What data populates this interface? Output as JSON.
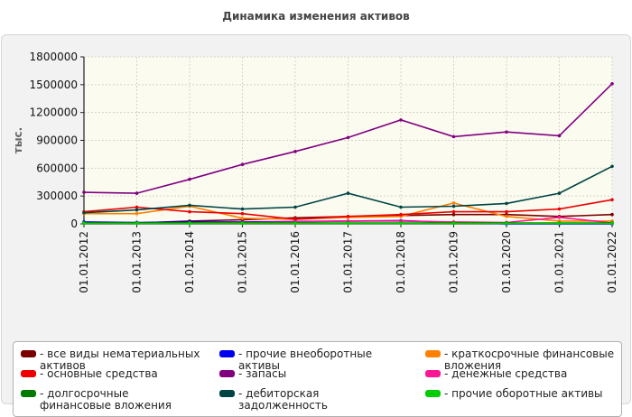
{
  "chart_data": {
    "type": "line",
    "title": "Динамика изменения активов",
    "ylabel": "тыс.",
    "xlabel": "",
    "ylim": [
      0,
      1800000
    ],
    "yticks": [
      0,
      300000,
      600000,
      900000,
      1200000,
      1500000,
      1800000
    ],
    "ytick_labels": [
      "0",
      "300000",
      "600000",
      "900000",
      "1200000",
      "1500000",
      "1800000"
    ],
    "categories": [
      "01.01.2012",
      "01.01.2013",
      "01.01.2014",
      "01.01.2015",
      "01.01.2016",
      "01.01.2017",
      "01.01.2018",
      "01.01.2019",
      "01.01.2020",
      "01.01.2021",
      "01.01.2022"
    ],
    "grid": true,
    "legend_position": "bottom",
    "series": [
      {
        "name": "все виды нематериальных активов",
        "color": "#7a0000",
        "values": [
          5000,
          10000,
          30000,
          45000,
          65000,
          80000,
          90000,
          100000,
          100000,
          80000,
          100000
        ]
      },
      {
        "name": "прочие внеоборотные активы",
        "color": "#0000ee",
        "values": [
          20000,
          15000,
          20000,
          20000,
          25000,
          30000,
          35000,
          15000,
          0,
          0,
          0
        ]
      },
      {
        "name": "краткосрочные финансовые вложения",
        "color": "#ff8000",
        "values": [
          110000,
          110000,
          190000,
          60000,
          50000,
          70000,
          80000,
          225000,
          80000,
          30000,
          30000
        ]
      },
      {
        "name": "основные средства",
        "color": "#ee0000",
        "values": [
          130000,
          180000,
          130000,
          110000,
          50000,
          80000,
          100000,
          130000,
          130000,
          160000,
          260000
        ]
      },
      {
        "name": "запасы",
        "color": "#800080",
        "values": [
          340000,
          330000,
          480000,
          640000,
          780000,
          930000,
          1120000,
          940000,
          990000,
          950000,
          1510000
        ]
      },
      {
        "name": "денежные средства",
        "color": "#ff1493",
        "values": [
          10000,
          10000,
          10000,
          15000,
          20000,
          30000,
          30000,
          20000,
          15000,
          70000,
          10000
        ]
      },
      {
        "name": "долгосрочные финансовые вложения",
        "color": "#007a00",
        "values": [
          10000,
          10000,
          10000,
          10000,
          10000,
          10000,
          10000,
          10000,
          10000,
          10000,
          10000
        ]
      },
      {
        "name": "дебиторская задолженность",
        "color": "#004444",
        "values": [
          120000,
          150000,
          200000,
          160000,
          180000,
          330000,
          180000,
          190000,
          220000,
          330000,
          620000
        ]
      },
      {
        "name": "прочие оборотные активы",
        "color": "#00cc00",
        "values": [
          5000,
          5000,
          5000,
          5000,
          5000,
          5000,
          5000,
          5000,
          5000,
          5000,
          5000
        ]
      }
    ]
  }
}
